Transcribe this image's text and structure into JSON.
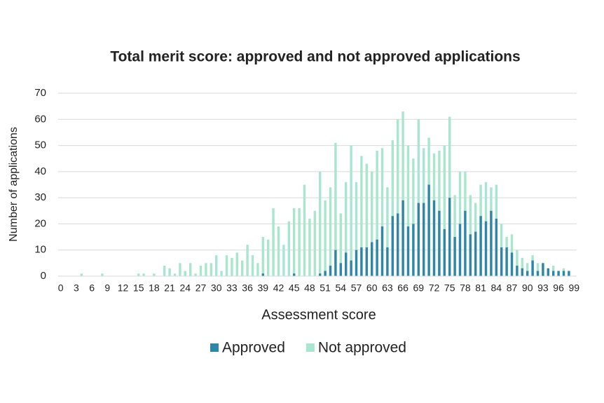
{
  "chart_data": {
    "type": "bar",
    "title": "Total merit score: approved and not approved applications",
    "x_label": "Assessment score",
    "y_label": "Number of applications",
    "categories": [
      "0",
      null,
      null,
      "3",
      null,
      null,
      "6",
      null,
      null,
      "9",
      null,
      null,
      "12",
      null,
      null,
      "15",
      null,
      null,
      "18",
      null,
      null,
      "21",
      null,
      null,
      "24",
      null,
      null,
      "27",
      null,
      null,
      "30",
      null,
      null,
      "33",
      null,
      null,
      "36",
      null,
      null,
      "39",
      null,
      null,
      "42",
      null,
      null,
      "45",
      null,
      null,
      "48",
      null,
      null,
      "51",
      null,
      null,
      "54",
      null,
      null,
      "57",
      null,
      null,
      "60",
      null,
      null,
      "63",
      null,
      null,
      "66",
      null,
      null,
      "69",
      null,
      null,
      "72",
      null,
      null,
      "75",
      null,
      null,
      "78",
      null,
      null,
      "81",
      null,
      null,
      "84",
      null,
      null,
      "87",
      null,
      null,
      "90",
      null,
      null,
      "93",
      null,
      null,
      "96",
      null,
      null,
      "99"
    ],
    "series": [
      {
        "name": "Not approved",
        "color": "#a8e6cf",
        "values": [
          0,
          0,
          0,
          0,
          1,
          0,
          0,
          0,
          1,
          0,
          0,
          0,
          0,
          0,
          0,
          1,
          1,
          0,
          1,
          0,
          4,
          3,
          1,
          5,
          2,
          5,
          1,
          4,
          5,
          5,
          8,
          2,
          8,
          7,
          9,
          6,
          12,
          8,
          5,
          15,
          14,
          26,
          19,
          12,
          21,
          26,
          26,
          35,
          22,
          25,
          40,
          29,
          34,
          51,
          24,
          36,
          50,
          36,
          46,
          43,
          40,
          48,
          49,
          34,
          52,
          60,
          63,
          50,
          45,
          60,
          49,
          53,
          47,
          48,
          50,
          61,
          31,
          40,
          40,
          31,
          28,
          35,
          36,
          34,
          35,
          20,
          15,
          16,
          10,
          7,
          5,
          8,
          5,
          5,
          3,
          4,
          2,
          3,
          1,
          0
        ]
      },
      {
        "name": "Approved",
        "color": "#2e86a8",
        "values": [
          0,
          0,
          0,
          0,
          0,
          0,
          0,
          0,
          0,
          0,
          0,
          0,
          0,
          0,
          0,
          0,
          0,
          0,
          0,
          0,
          0,
          0,
          0,
          0,
          0,
          0,
          0,
          0,
          0,
          0,
          0,
          0,
          0,
          0,
          0,
          0,
          0,
          0,
          0,
          1,
          0,
          0,
          0,
          0,
          0,
          1,
          0,
          0,
          0,
          0,
          1,
          2,
          4,
          10,
          5,
          9,
          6,
          10,
          11,
          11,
          13,
          14,
          19,
          11,
          23,
          24,
          29,
          19,
          20,
          28,
          28,
          35,
          29,
          25,
          18,
          30,
          15,
          20,
          25,
          16,
          17,
          23,
          21,
          25,
          22,
          11,
          11,
          9,
          4,
          3,
          2,
          6,
          2,
          5,
          3,
          2,
          2,
          2,
          2,
          0
        ]
      }
    ],
    "legend_order": [
      1,
      0
    ],
    "ylim": [
      0,
      70
    ],
    "yticks": [
      0,
      10,
      20,
      30,
      40,
      50,
      60,
      70
    ],
    "grid": true
  }
}
